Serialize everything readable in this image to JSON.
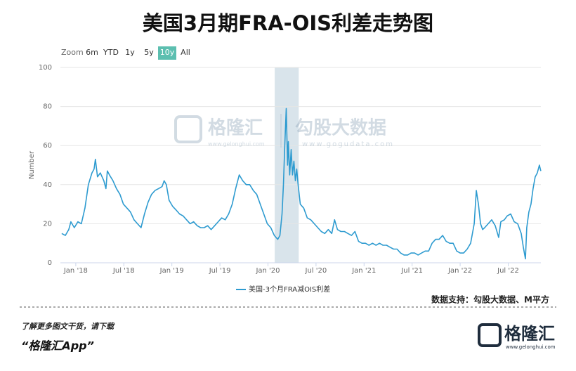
{
  "chart_data": {
    "type": "line",
    "title": "美国3月期FRA-OIS利差走势图",
    "range_selector": {
      "label": "Zoom",
      "buttons": [
        "6m",
        "YTD",
        "1y",
        "5y",
        "10y",
        "All"
      ],
      "selected": 4
    },
    "y_label": "Number",
    "watermark": {
      "brand": "格隆汇",
      "brand_url": "www.gelonghui.com",
      "partner": "勾股大数据",
      "partner_url": "www.gogudata.com"
    },
    "x": [
      2017.854,
      2017.891,
      2017.927,
      2017.949,
      2017.985,
      2018.022,
      2018.058,
      2018.095,
      2018.131,
      2018.168,
      2018.19,
      2018.204,
      2018.226,
      2018.255,
      2018.292,
      2018.314,
      2018.328,
      2018.35,
      2018.387,
      2018.423,
      2018.46,
      2018.496,
      2018.533,
      2018.569,
      2018.606,
      2018.642,
      2018.679,
      2018.715,
      2018.752,
      2018.788,
      2018.825,
      2018.861,
      2018.898,
      2018.92,
      2018.942,
      2018.971,
      2019.007,
      2019.044,
      2019.08,
      2019.117,
      2019.153,
      2019.19,
      2019.226,
      2019.263,
      2019.299,
      2019.336,
      2019.372,
      2019.409,
      2019.445,
      2019.482,
      2019.518,
      2019.555,
      2019.591,
      2019.628,
      2019.664,
      2019.701,
      2019.737,
      2019.774,
      2019.81,
      2019.847,
      2019.883,
      2019.92,
      2019.956,
      2019.993,
      2020.029,
      2020.066,
      2020.102,
      2020.124,
      2020.146,
      2020.161,
      2020.175,
      2020.19,
      2020.204,
      2020.212,
      2020.226,
      2020.241,
      2020.255,
      2020.27,
      2020.285,
      2020.299,
      2020.314,
      2020.336,
      2020.372,
      2020.409,
      2020.445,
      2020.482,
      2020.518,
      2020.555,
      2020.591,
      2020.628,
      2020.664,
      2020.693,
      2020.723,
      2020.759,
      2020.796,
      2020.832,
      2020.869,
      2020.905,
      2020.942,
      2020.978,
      2021.015,
      2021.051,
      2021.088,
      2021.124,
      2021.161,
      2021.197,
      2021.234,
      2021.27,
      2021.307,
      2021.343,
      2021.38,
      2021.416,
      2021.453,
      2021.489,
      2021.526,
      2021.562,
      2021.599,
      2021.635,
      2021.672,
      2021.708,
      2021.745,
      2021.781,
      2021.818,
      2021.854,
      2021.891,
      2021.927,
      2021.964,
      2022.0,
      2022.036,
      2022.073,
      2022.109,
      2022.146,
      2022.168,
      2022.19,
      2022.212,
      2022.234,
      2022.255,
      2022.292,
      2022.328,
      2022.365,
      2022.401,
      2022.423,
      2022.46,
      2022.489,
      2022.526,
      2022.562,
      2022.599,
      2022.635,
      2022.657,
      2022.679,
      2022.693,
      2022.715,
      2022.737,
      2022.759,
      2022.781,
      2022.803,
      2022.825,
      2022.839
    ],
    "series": [
      {
        "name": "美国-3个月FRA减OIS利差",
        "color": "#2e9bd0",
        "values": [
          15,
          14,
          17,
          21,
          18,
          21,
          20,
          28,
          40,
          46,
          48,
          53,
          44,
          46,
          42,
          38,
          47,
          45,
          42,
          38,
          35,
          30,
          28,
          26,
          22,
          20,
          18,
          25,
          31,
          35,
          37,
          38,
          39,
          42,
          40,
          32,
          29,
          27,
          25,
          24,
          22,
          20,
          21,
          19,
          18,
          18,
          19,
          17,
          19,
          21,
          23,
          22,
          25,
          30,
          38,
          45,
          42,
          40,
          40,
          37,
          35,
          30,
          25,
          20,
          18,
          14,
          12,
          14,
          25,
          40,
          60,
          79,
          50,
          62,
          45,
          58,
          45,
          52,
          42,
          48,
          40,
          30,
          28,
          23,
          22,
          20,
          18,
          16,
          15,
          17,
          15,
          22,
          17,
          16,
          16,
          15,
          14,
          16,
          11,
          10,
          10,
          9,
          10,
          9,
          10,
          9,
          9,
          8,
          7,
          7,
          5,
          4,
          4,
          5,
          5,
          4,
          5,
          6,
          6,
          10,
          12,
          12,
          14,
          11,
          10,
          10,
          6,
          5,
          5,
          7,
          10,
          20,
          37,
          30,
          20,
          17,
          18,
          20,
          22,
          19,
          13,
          21,
          22,
          24,
          25,
          21,
          20,
          15,
          8,
          2,
          18,
          26,
          30,
          38,
          44,
          46,
          50,
          47
        ]
      }
    ],
    "highlight": [
      2020.07,
      2020.32
    ],
    "xlim": [
      2017.84,
      2022.84
    ],
    "xticks": [
      {
        "value": 2018,
        "label": "Jan '18"
      },
      {
        "value": 2018.5,
        "label": "Jul '18"
      },
      {
        "value": 2019,
        "label": "Jan '19"
      },
      {
        "value": 2019.5,
        "label": "Jul '19"
      },
      {
        "value": 2020,
        "label": "Jan '20"
      },
      {
        "value": 2020.5,
        "label": "Jul '20"
      },
      {
        "value": 2021,
        "label": "Jan '21"
      },
      {
        "value": 2021.5,
        "label": "Jul '21"
      },
      {
        "value": 2022,
        "label": "Jan '22"
      },
      {
        "value": 2022.5,
        "label": "Jul '22"
      }
    ],
    "ylim": [
      0,
      100
    ],
    "yticks": [
      0,
      20,
      40,
      60,
      80,
      100
    ],
    "grid": true,
    "source": "数据支持：勾股大数据、M平方"
  },
  "footer": {
    "prompt": "了解更多图文干货，请下载",
    "app": "“格隆汇App”",
    "logo": "格隆汇",
    "logo_url": "www.gelonghui.com"
  }
}
